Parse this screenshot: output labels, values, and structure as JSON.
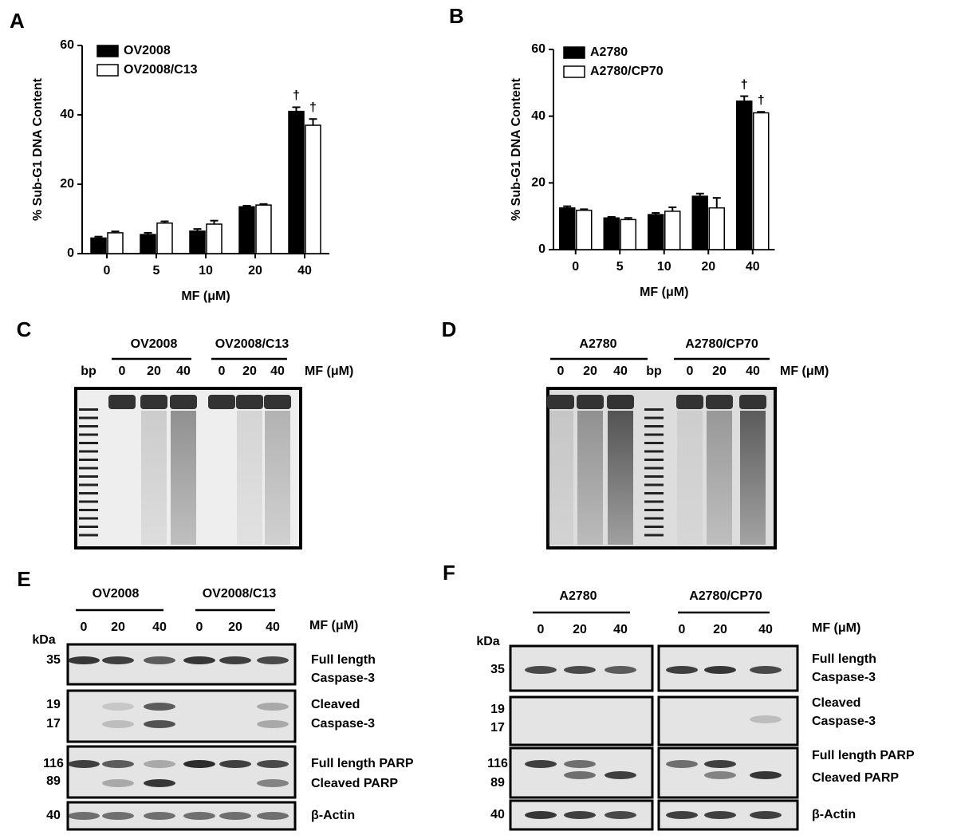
{
  "chart_data": [
    {
      "type": "bar",
      "panel": "A",
      "ylabel": "% Sub-G1  DNA Content",
      "xlabel": "MF (μM)",
      "categories": [
        "0",
        "5",
        "10",
        "20",
        "40"
      ],
      "ylim": [
        0,
        60
      ],
      "yticks": [
        0,
        20,
        40,
        60
      ],
      "series": [
        {
          "name": "OV2008",
          "color": "#000000",
          "values": [
            4.5,
            5.5,
            6.5,
            13.5,
            41
          ],
          "errors": [
            0.4,
            0.5,
            0.6,
            0.3,
            1.2
          ],
          "annotations": [
            null,
            null,
            null,
            null,
            "†"
          ]
        },
        {
          "name": "OV2008/C13",
          "color": "#ffffff",
          "values": [
            6,
            8.8,
            8.5,
            14,
            37
          ],
          "errors": [
            0.4,
            0.5,
            1,
            0.3,
            1.8
          ],
          "annotations": [
            null,
            null,
            null,
            null,
            "†"
          ]
        }
      ]
    },
    {
      "type": "bar",
      "panel": "B",
      "ylabel": "% Sub-G1  DNA Content",
      "xlabel": "MF (μM)",
      "categories": [
        "0",
        "5",
        "10",
        "20",
        "40"
      ],
      "ylim": [
        0,
        60
      ],
      "yticks": [
        0,
        20,
        40,
        60
      ],
      "series": [
        {
          "name": "A2780",
          "color": "#000000",
          "values": [
            12.5,
            9.5,
            10.5,
            16,
            44.5
          ],
          "errors": [
            0.5,
            0.3,
            0.5,
            0.8,
            1.5
          ],
          "annotations": [
            null,
            null,
            null,
            null,
            "†"
          ]
        },
        {
          "name": "A2780/CP70",
          "color": "#ffffff",
          "values": [
            11.8,
            9,
            11.5,
            12.5,
            41
          ],
          "errors": [
            0.3,
            0.5,
            1.2,
            3,
            0.3
          ],
          "annotations": [
            null,
            null,
            null,
            null,
            "†"
          ]
        }
      ]
    }
  ],
  "panels": {
    "C": {
      "letter": "C",
      "groups": [
        "OV2008",
        "OV2008/C13"
      ],
      "bp": "bp",
      "lanes": [
        "0",
        "20",
        "40",
        "0",
        "20",
        "40"
      ],
      "unit": "MF (μM)"
    },
    "D": {
      "letter": "D",
      "groups": [
        "A2780",
        "A2780/CP70"
      ],
      "bp": "bp",
      "lanes": [
        "0",
        "20",
        "40",
        "0",
        "20",
        "40"
      ],
      "unit": "MF (μM)"
    },
    "E": {
      "letter": "E",
      "groups": [
        "OV2008",
        "OV2008/C13"
      ],
      "lanes": [
        "0",
        "20",
        "40",
        "0",
        "20",
        "40"
      ],
      "unit": "MF (μM)",
      "kda": "kDa",
      "markers": [
        "35",
        "19",
        "17",
        "116",
        "89",
        "40"
      ],
      "labels": [
        "Full length",
        "Caspase-3",
        "Cleaved",
        "Caspase-3",
        "Full length PARP",
        "Cleaved PARP",
        "β-Actin"
      ]
    },
    "F": {
      "letter": "F",
      "groups": [
        "A2780",
        "A2780/CP70"
      ],
      "lanes": [
        "0",
        "20",
        "40",
        "0",
        "20",
        "40"
      ],
      "unit": "MF (μM)",
      "kda": "kDa",
      "markers": [
        "35",
        "19",
        "17",
        "116",
        "89",
        "40"
      ],
      "labels": [
        "Full length",
        "Caspase-3",
        "Cleaved",
        "Caspase-3",
        "Full length PARP",
        "Cleaved PARP",
        "β-Actin"
      ]
    }
  }
}
